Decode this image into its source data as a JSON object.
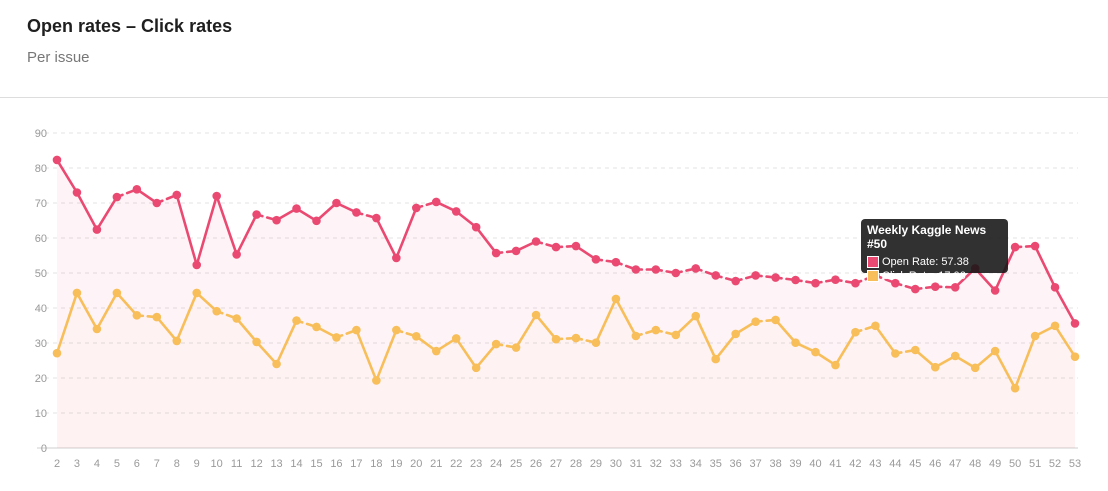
{
  "header": {
    "title": "Open rates – Click rates",
    "subtitle": "Per issue"
  },
  "tooltip": {
    "title": "Weekly Kaggle News #50",
    "rows": [
      {
        "label": "Open Rate: 57.38",
        "color": "#ea4a72"
      },
      {
        "label": "Click Rate: 17.06",
        "color": "#f7be5a"
      }
    ]
  },
  "chart_data": {
    "type": "line",
    "x": [
      2,
      3,
      4,
      5,
      6,
      7,
      8,
      9,
      10,
      11,
      12,
      13,
      14,
      15,
      16,
      17,
      18,
      19,
      20,
      21,
      22,
      23,
      24,
      25,
      26,
      27,
      28,
      29,
      30,
      31,
      32,
      33,
      34,
      35,
      36,
      37,
      38,
      39,
      40,
      41,
      42,
      43,
      44,
      45,
      46,
      47,
      48,
      49,
      50,
      51,
      52,
      53
    ],
    "ylim": [
      0,
      90
    ],
    "yticks": [
      0,
      10,
      20,
      30,
      40,
      50,
      60,
      70,
      80,
      90
    ],
    "grid": true,
    "series": [
      {
        "name": "Open Rate",
        "color": "#ea4a72",
        "values": [
          82.3,
          73.0,
          62.4,
          71.7,
          73.9,
          70.0,
          72.3,
          52.3,
          72.0,
          55.3,
          66.7,
          65.1,
          68.4,
          64.9,
          70.0,
          67.3,
          65.7,
          54.3,
          68.6,
          70.3,
          67.6,
          63.1,
          55.7,
          56.3,
          59.0,
          57.4,
          57.7,
          53.9,
          53.1,
          51.0,
          51.0,
          50.0,
          51.3,
          49.3,
          47.7,
          49.3,
          48.7,
          48.0,
          47.1,
          48.1,
          47.1,
          49.3,
          47.1,
          45.4,
          46.1,
          45.9,
          51.3,
          45.0,
          57.4,
          57.7,
          45.9,
          35.6
        ]
      },
      {
        "name": "Click Rate",
        "color": "#f7be5a",
        "values": [
          27.1,
          44.3,
          34.0,
          44.3,
          37.9,
          37.4,
          30.6,
          44.3,
          39.1,
          37.0,
          30.3,
          24.0,
          36.4,
          34.6,
          31.6,
          33.7,
          19.3,
          33.7,
          31.9,
          27.7,
          31.3,
          22.9,
          29.7,
          28.7,
          38.0,
          31.1,
          31.4,
          30.1,
          42.6,
          32.0,
          33.7,
          32.3,
          37.7,
          25.4,
          32.6,
          36.1,
          36.6,
          30.1,
          27.4,
          23.7,
          33.1,
          34.9,
          27.0,
          28.0,
          23.1,
          26.3,
          22.9,
          27.7,
          17.1,
          32.0,
          34.9,
          26.1
        ]
      }
    ]
  }
}
